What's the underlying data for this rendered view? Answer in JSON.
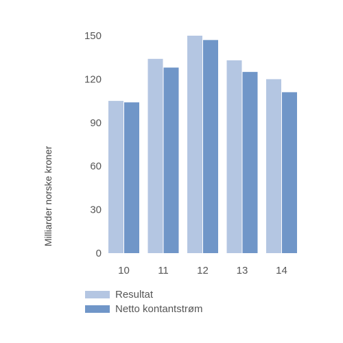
{
  "chart_data": {
    "type": "bar",
    "categories": [
      "10",
      "11",
      "12",
      "13",
      "14"
    ],
    "series": [
      {
        "name": "Resultat",
        "values": [
          105,
          134,
          150,
          133,
          120
        ],
        "color": "#b4c6e2"
      },
      {
        "name": "Netto kontantstrøm",
        "values": [
          104,
          128,
          147,
          125,
          111
        ],
        "color": "#7096c8"
      }
    ],
    "ylabel": "Milliarder norske kroner",
    "ylim": [
      0,
      150
    ],
    "yticks": [
      0,
      30,
      60,
      90,
      120,
      150
    ],
    "grid": false,
    "legend_position": "bottom-left"
  }
}
